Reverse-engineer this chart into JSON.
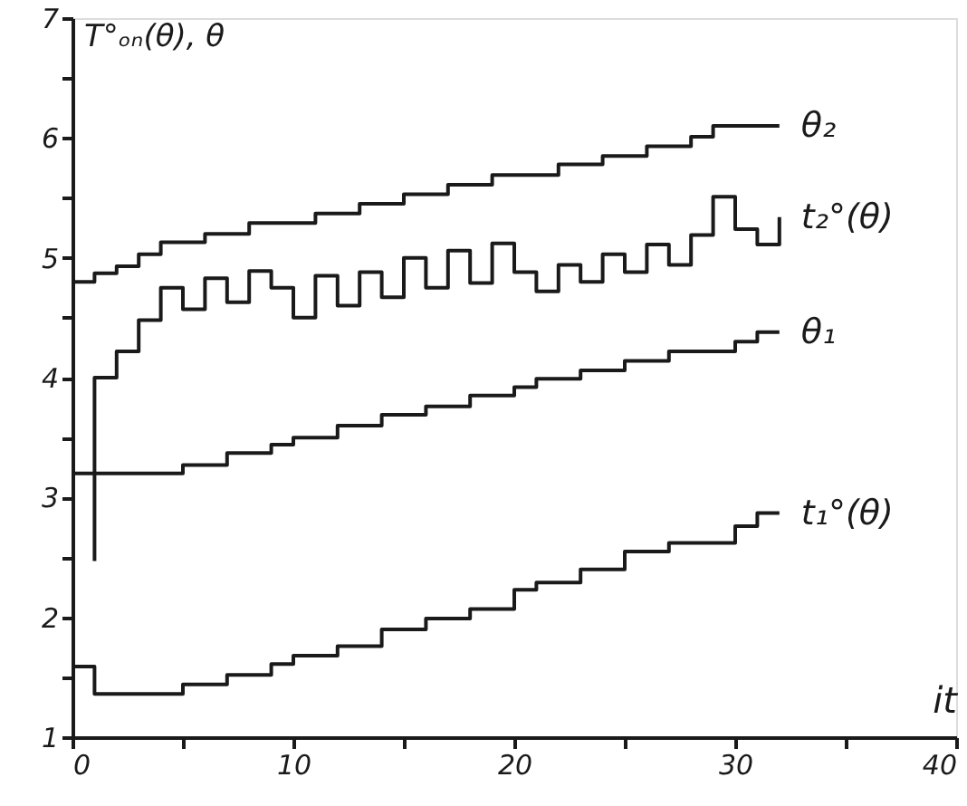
{
  "chart_data": {
    "type": "step",
    "xlabel": "it",
    "ylabel": "T°ₒₙ(θ), θ",
    "xlim": [
      0,
      40
    ],
    "xticks": [
      0,
      {
        "value": 5,
        "label": null
      },
      10,
      {
        "value": 15,
        "label": null
      },
      20,
      {
        "value": 25,
        "label": null
      },
      30,
      {
        "value": 35,
        "label": null
      },
      40
    ],
    "ylim": [
      1,
      7
    ],
    "yticks": [
      1,
      {
        "value": 1.5,
        "label": null
      },
      2,
      {
        "value": 2.5,
        "label": null
      },
      3,
      {
        "value": 3.5,
        "label": null
      },
      4,
      {
        "value": 4.5,
        "label": null
      },
      5,
      {
        "value": 5.5,
        "label": null
      },
      6,
      {
        "value": 6.5,
        "label": null
      },
      7
    ],
    "grid": false,
    "line_style": "solid",
    "marker": "none",
    "series": [
      {
        "name": "θ₂",
        "color": "#1a1a1a",
        "x": [
          0,
          1,
          2,
          3,
          4,
          6,
          8,
          11,
          13,
          15,
          17,
          19,
          22,
          24,
          26,
          28,
          29,
          32
        ],
        "values": [
          4.8,
          4.87,
          4.93,
          5.03,
          5.13,
          5.2,
          5.29,
          5.37,
          5.45,
          5.53,
          5.61,
          5.69,
          5.78,
          5.85,
          5.93,
          6.01,
          6.1,
          6.1
        ]
      },
      {
        "name": "t₂°(θ)",
        "color": "#1a1a1a",
        "x": [
          1,
          1,
          2,
          3,
          4,
          5,
          6,
          7,
          8,
          9,
          10,
          11,
          12,
          13,
          14,
          15,
          16,
          17,
          18,
          19,
          20,
          21,
          22,
          23,
          24,
          25,
          26,
          27,
          28,
          29,
          30,
          31,
          32
        ],
        "values": [
          2.47,
          4.0,
          4.22,
          4.48,
          4.75,
          4.57,
          4.83,
          4.63,
          4.89,
          4.75,
          4.5,
          4.85,
          4.6,
          4.88,
          4.67,
          5.0,
          4.75,
          5.06,
          4.79,
          5.12,
          4.88,
          4.72,
          4.94,
          4.8,
          5.03,
          4.88,
          5.11,
          4.94,
          5.19,
          5.51,
          5.24,
          5.11,
          5.34
        ]
      },
      {
        "name": "θ₁",
        "color": "#1a1a1a",
        "x": [
          0,
          5,
          7,
          9,
          10,
          12,
          14,
          16,
          18,
          20,
          21,
          23,
          25,
          27,
          30,
          31,
          32
        ],
        "values": [
          3.2,
          3.27,
          3.37,
          3.44,
          3.5,
          3.6,
          3.69,
          3.76,
          3.85,
          3.92,
          3.99,
          4.06,
          4.14,
          4.22,
          4.3,
          4.38,
          4.38
        ]
      },
      {
        "name": "t₁°(θ)",
        "color": "#1a1a1a",
        "x": [
          0,
          1,
          5,
          7,
          9,
          10,
          12,
          14,
          16,
          18,
          20,
          21,
          23,
          25,
          27,
          30,
          31,
          32
        ],
        "values": [
          1.59,
          1.36,
          1.44,
          1.52,
          1.61,
          1.68,
          1.76,
          1.9,
          1.99,
          2.07,
          2.23,
          2.29,
          2.4,
          2.55,
          2.62,
          2.76,
          2.87,
          2.87
        ]
      }
    ]
  }
}
